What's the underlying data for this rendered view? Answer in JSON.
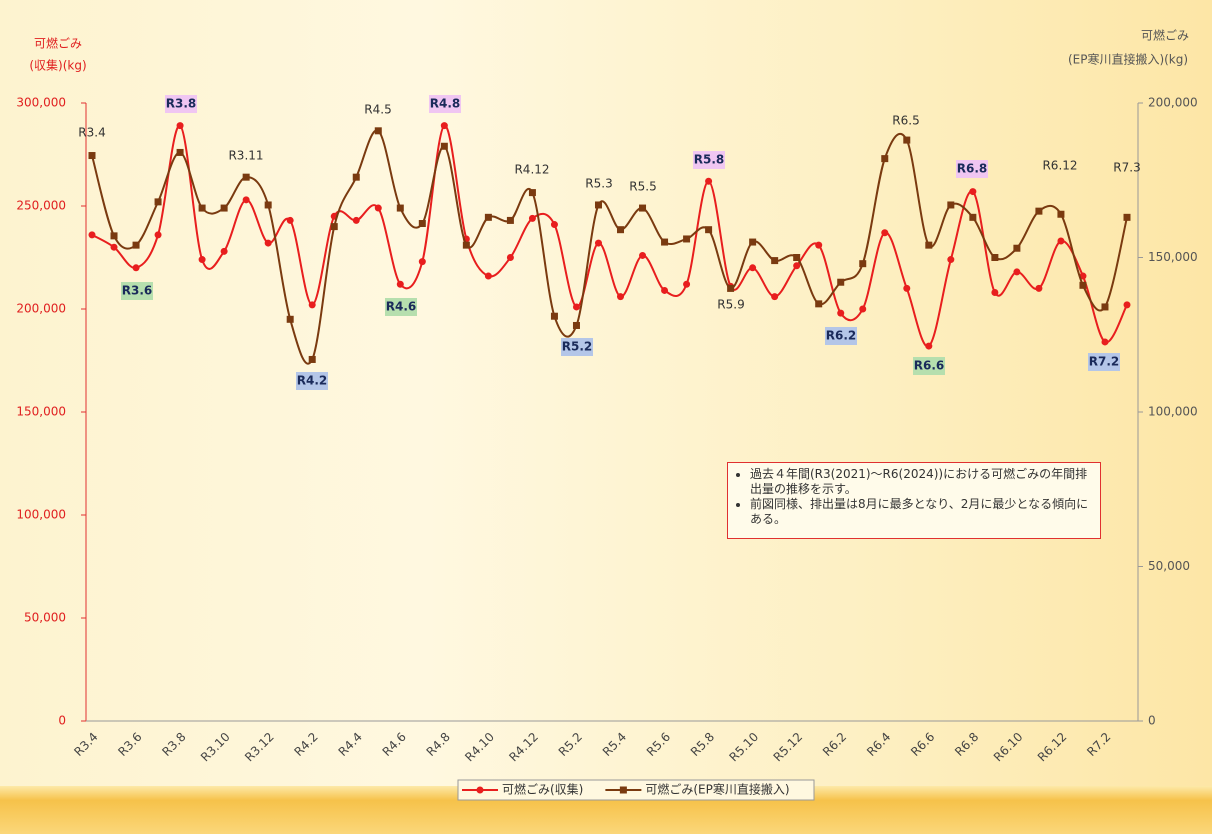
{
  "chart_data": {
    "type": "line",
    "y_label": [
      "可燃ごみ",
      "(収集)(kg)"
    ],
    "y2_label": [
      "可燃ごみ",
      "(EP寒川直接搬入)(kg)"
    ],
    "categories": [
      "R3.4",
      null,
      "R3.6",
      null,
      "R3.8",
      null,
      "R3.10",
      null,
      "R3.12",
      null,
      "R4.2",
      null,
      "R4.4",
      null,
      "R4.6",
      null,
      "R4.8",
      null,
      "R4.10",
      null,
      "R4.12",
      null,
      "R5.2",
      null,
      "R5.4",
      null,
      "R5.6",
      null,
      "R5.8",
      null,
      "R5.10",
      null,
      "R5.12",
      null,
      "R6.2",
      null,
      "R6.4",
      null,
      "R6.6",
      null,
      "R6.8",
      null,
      "R6.10",
      null,
      "R6.12",
      null,
      "R7.2",
      null
    ],
    "series": [
      {
        "name": "可燃ごみ(収集)",
        "color": "#e81e1e",
        "marker": "circle",
        "values": [
          236000,
          230000,
          220000,
          236000,
          289000,
          224000,
          228000,
          253000,
          232000,
          243000,
          202000,
          245000,
          243000,
          249000,
          212000,
          223000,
          289000,
          234000,
          216000,
          225000,
          244000,
          241000,
          201000,
          232000,
          206000,
          226000,
          209000,
          212000,
          262000,
          211000,
          220000,
          206000,
          221000,
          231000,
          198000,
          200000,
          237000,
          210000,
          182000,
          224000,
          257000,
          208000,
          218000,
          210000,
          233000,
          216000,
          184000,
          202000
        ]
      },
      {
        "name": "可燃ごみ(EP寒川直接搬入)",
        "color": "#7a3a10",
        "marker": "square",
        "axis": "y2",
        "values": [
          183000,
          157000,
          154000,
          168000,
          184000,
          166000,
          166000,
          176000,
          167000,
          130000,
          117000,
          160000,
          176000,
          191000,
          166000,
          161000,
          186000,
          154000,
          163000,
          162000,
          171000,
          131000,
          128000,
          167000,
          159000,
          166000,
          155000,
          156000,
          159000,
          140000,
          155000,
          149000,
          150000,
          135000,
          142000,
          148000,
          182000,
          188000,
          154000,
          167000,
          163000,
          150000,
          153000,
          165000,
          164000,
          141000,
          134000,
          163000
        ]
      }
    ],
    "ylim": [
      0,
      300000
    ],
    "yticks": [
      0,
      {
        "value": 50000,
        "label": "50,000"
      },
      {
        "value": 100000,
        "label": "100,000"
      },
      {
        "value": 150000,
        "label": "150,000"
      },
      {
        "value": 200000,
        "label": "200,000"
      },
      {
        "value": 250000,
        "label": "250,000"
      },
      {
        "value": 300000,
        "label": "300,000"
      }
    ],
    "y2lim": [
      0,
      200000
    ],
    "y2ticks": [
      0,
      {
        "value": 50000,
        "label": "50,000"
      },
      {
        "value": 100000,
        "label": "100,000"
      },
      {
        "value": 150000,
        "label": "150,000"
      },
      {
        "value": 200000,
        "label": "200,000"
      }
    ],
    "legend": "bottom",
    "annotations": [
      {
        "text": "R3.4"
      },
      {
        "text": "R3.8",
        "background": "#f0c6f2"
      },
      {
        "text": "R3.6",
        "background": "#b6dfae"
      },
      {
        "text": "R3.11"
      },
      {
        "text": "R4.2",
        "background": "#b4c6e8"
      },
      {
        "text": "R4.5"
      },
      {
        "text": "R4.6",
        "background": "#b6dfae"
      },
      {
        "text": "R4.8",
        "background": "#f0c6f2"
      },
      {
        "text": "R4.12"
      },
      {
        "text": "R5.2",
        "background": "#b4c6e8"
      },
      {
        "text": "R5.3"
      },
      {
        "text": "R5.5"
      },
      {
        "text": "R5.8",
        "background": "#f0c6f2"
      },
      {
        "text": "R5.9"
      },
      {
        "text": "R6.2",
        "background": "#b4c6e8"
      },
      {
        "text": "R6.5"
      },
      {
        "text": "R6.6",
        "background": "#b6dfae"
      },
      {
        "text": "R6.8",
        "background": "#f0c6f2"
      },
      {
        "text": "R6.12"
      },
      {
        "text": "R7.2",
        "background": "#b4c6e8"
      },
      {
        "text": "R7.3"
      }
    ],
    "note": [
      "過去４年間(R3(2021)～R6(2024))における可燃ごみの年間排出量の推移を示す。",
      "前図同様、排出量は8月に最多となり、2月に最少となる傾向にある。"
    ]
  }
}
